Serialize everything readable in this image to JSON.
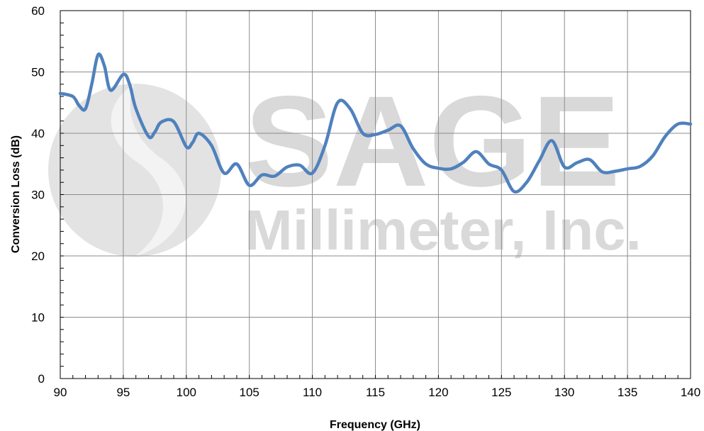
{
  "watermark": {
    "brand": "SAGE",
    "company": "Millimeter, Inc.",
    "color": "#dcdcdc"
  },
  "chart_data": {
    "type": "line",
    "title": "",
    "xlabel": "Frequency (GHz)",
    "ylabel": "Conversion Loss (dB)",
    "xlim": [
      90,
      140
    ],
    "ylim": [
      0,
      60
    ],
    "xticks": [
      90,
      95,
      100,
      105,
      110,
      115,
      120,
      125,
      130,
      135,
      140
    ],
    "yticks": [
      0,
      10,
      20,
      30,
      40,
      50,
      60
    ],
    "grid": true,
    "legend": "none",
    "series": [
      {
        "color": "#4f81bd",
        "x": [
          90,
          91,
          91.5,
          92,
          92.5,
          93,
          93.5,
          94,
          95,
          95.5,
          96,
          97,
          97.5,
          98,
          99,
          100,
          100.5,
          101,
          102,
          103,
          104,
          105,
          106,
          107,
          108,
          109,
          110,
          111,
          112,
          113,
          114,
          115,
          116,
          117,
          118,
          119,
          120,
          121,
          122,
          123,
          124,
          125,
          126,
          127,
          128,
          129,
          130,
          131,
          132,
          133,
          134,
          135,
          136,
          137,
          138,
          139,
          140
        ],
        "y": [
          46.5,
          46,
          44.5,
          44,
          48,
          52.8,
          51,
          47,
          49.6,
          48,
          44,
          39.5,
          40.2,
          41.8,
          41.9,
          37.8,
          38.5,
          40,
          38,
          33.5,
          35,
          31.5,
          33.2,
          33,
          34.5,
          34.8,
          33.5,
          38,
          45,
          44,
          40,
          39.8,
          40.5,
          41.2,
          37.5,
          35,
          34.3,
          34.2,
          35.3,
          37,
          35,
          34,
          30.5,
          32,
          35.5,
          38.8,
          34.5,
          35.2,
          35.7,
          33.7,
          33.8,
          34.2,
          34.6,
          36.3,
          39.5,
          41.5,
          41.5
        ]
      }
    ]
  }
}
